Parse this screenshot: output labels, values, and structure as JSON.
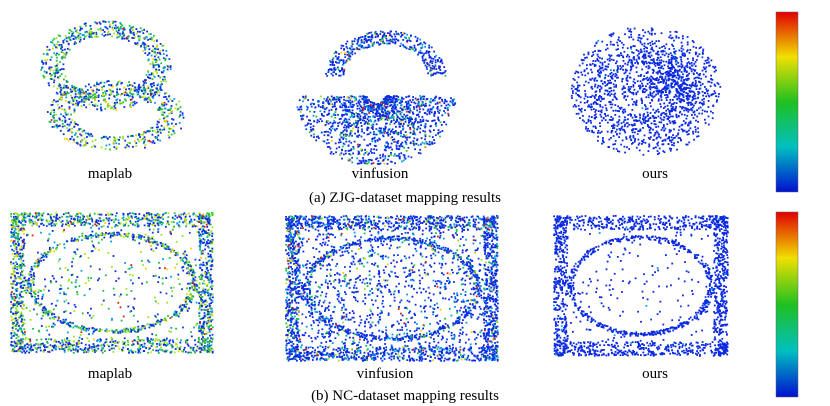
{
  "figure": {
    "rows": [
      {
        "caption": "(a) ZJG-dataset mapping results",
        "panels": [
          {
            "label": "maplab"
          },
          {
            "label": "vinfusion"
          },
          {
            "label": "ours"
          }
        ]
      },
      {
        "caption": "(b) NC-dataset mapping results",
        "panels": [
          {
            "label": "maplab"
          },
          {
            "label": "vinfusion"
          },
          {
            "label": "ours"
          }
        ]
      }
    ]
  }
}
